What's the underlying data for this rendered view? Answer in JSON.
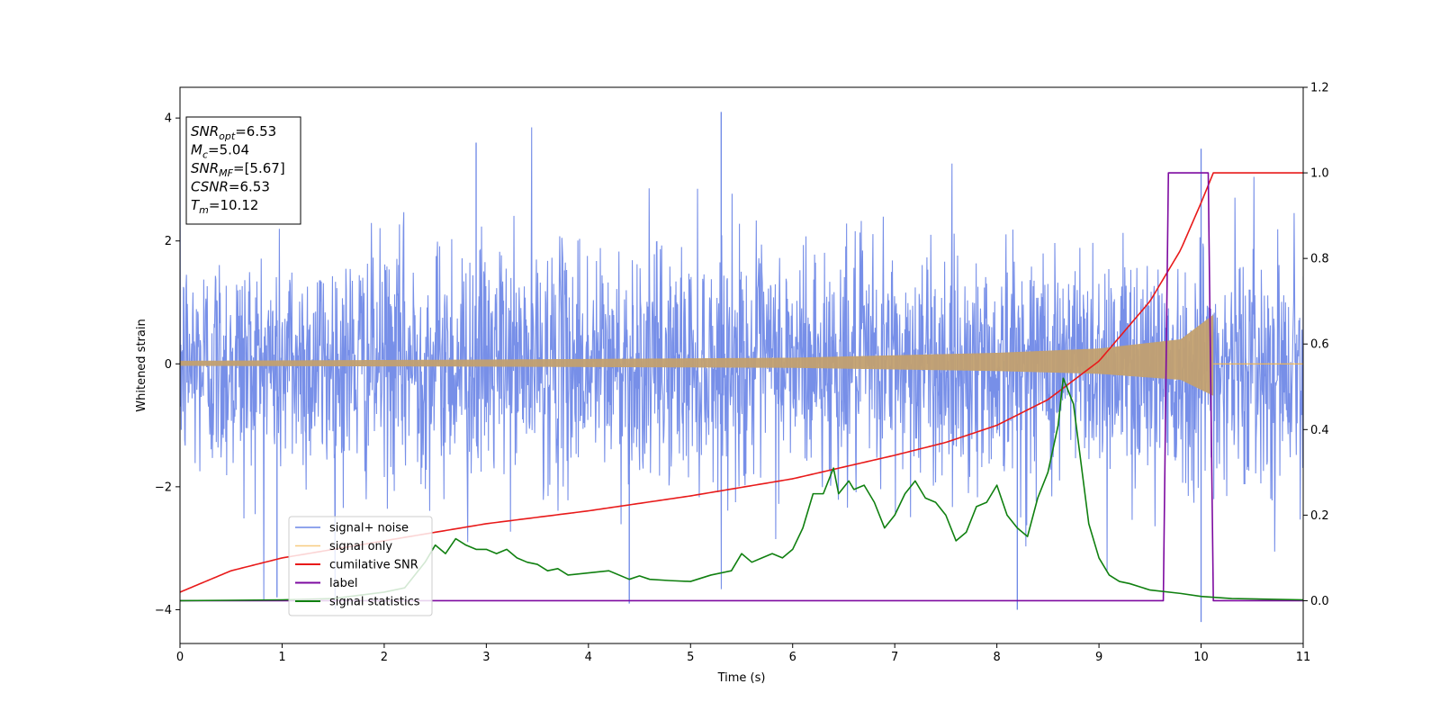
{
  "chart_data": {
    "type": "line",
    "xlabel": "Time (s)",
    "ylabel_left": "Whitened strain",
    "xlim": [
      0,
      11
    ],
    "ylim_left": [
      -4.55,
      4.5
    ],
    "ylim_right": [
      -0.1,
      1.2
    ],
    "xticks": [
      "0",
      "1",
      "2",
      "3",
      "4",
      "5",
      "6",
      "7",
      "8",
      "9",
      "10",
      "11"
    ],
    "yticks_left": [
      "4",
      "2",
      "0",
      "−2",
      "−4"
    ],
    "yticks_right": [
      "1.2",
      "1.0",
      "0.8",
      "0.6",
      "0.4",
      "0.2",
      "0.0"
    ],
    "grid": false,
    "legend_position": "lower-left",
    "annotation": [
      {
        "var": "SNR",
        "sub": "opt",
        "value": "=6.53"
      },
      {
        "var": "M",
        "sub": "c",
        "value": "=5.04"
      },
      {
        "var": "SNR",
        "sub": "MF",
        "value": "=[5.67]"
      },
      {
        "var": "CSNR",
        "sub": "",
        "value": "=6.53"
      },
      {
        "var": "T",
        "sub": "m",
        "value": "=10.12"
      }
    ],
    "series": [
      {
        "name": "signal+ noise",
        "color": "#6b86e6",
        "axis": "left",
        "kind": "noise",
        "std": 0.95,
        "x_range": [
          0,
          11
        ],
        "notable_peaks": [
          [
            5.3,
            4.1
          ],
          [
            10.0,
            3.5
          ],
          [
            2.9,
            3.6
          ],
          [
            0.95,
            -3.8
          ],
          [
            10.0,
            -4.2
          ],
          [
            8.2,
            -4.0
          ],
          [
            4.4,
            -3.9
          ]
        ]
      },
      {
        "name": "signal only",
        "color": "#f5b64b",
        "axis": "left",
        "kind": "chirp",
        "merger_time": 10.12,
        "amplitude_points": [
          [
            0,
            0.05
          ],
          [
            3,
            0.07
          ],
          [
            6,
            0.1
          ],
          [
            8,
            0.18
          ],
          [
            9,
            0.25
          ],
          [
            9.8,
            0.4
          ],
          [
            10.12,
            0.8
          ]
        ]
      },
      {
        "name": "cumilative SNR",
        "color": "#e81a1a",
        "axis": "right",
        "points": [
          [
            0,
            0.02
          ],
          [
            0.5,
            0.07
          ],
          [
            1,
            0.1
          ],
          [
            2,
            0.14
          ],
          [
            3,
            0.18
          ],
          [
            4,
            0.21
          ],
          [
            5,
            0.245
          ],
          [
            6,
            0.285
          ],
          [
            7,
            0.34
          ],
          [
            7.5,
            0.37
          ],
          [
            8,
            0.41
          ],
          [
            8.5,
            0.47
          ],
          [
            9,
            0.56
          ],
          [
            9.5,
            0.7
          ],
          [
            9.8,
            0.82
          ],
          [
            10.0,
            0.93
          ],
          [
            10.12,
            1.0
          ],
          [
            11,
            1.0
          ]
        ]
      },
      {
        "name": "label",
        "color": "#7d0aa0",
        "axis": "right",
        "points": [
          [
            0,
            0
          ],
          [
            9.63,
            0
          ],
          [
            9.68,
            1
          ],
          [
            10.07,
            1
          ],
          [
            10.12,
            0
          ],
          [
            11,
            0
          ]
        ]
      },
      {
        "name": "signal statistics",
        "color": "#108010",
        "axis": "right",
        "points": [
          [
            0,
            0
          ],
          [
            1,
            0.002
          ],
          [
            1.5,
            0.005
          ],
          [
            2,
            0.02
          ],
          [
            2.2,
            0.03
          ],
          [
            2.4,
            0.09
          ],
          [
            2.5,
            0.13
          ],
          [
            2.6,
            0.11
          ],
          [
            2.7,
            0.145
          ],
          [
            2.8,
            0.13
          ],
          [
            2.9,
            0.12
          ],
          [
            3.0,
            0.12
          ],
          [
            3.1,
            0.11
          ],
          [
            3.2,
            0.12
          ],
          [
            3.3,
            0.1
          ],
          [
            3.4,
            0.09
          ],
          [
            3.5,
            0.085
          ],
          [
            3.6,
            0.07
          ],
          [
            3.7,
            0.075
          ],
          [
            3.8,
            0.06
          ],
          [
            4.0,
            0.065
          ],
          [
            4.2,
            0.07
          ],
          [
            4.4,
            0.05
          ],
          [
            4.5,
            0.058
          ],
          [
            4.6,
            0.05
          ],
          [
            4.8,
            0.047
          ],
          [
            5.0,
            0.045
          ],
          [
            5.2,
            0.06
          ],
          [
            5.4,
            0.07
          ],
          [
            5.5,
            0.11
          ],
          [
            5.6,
            0.09
          ],
          [
            5.7,
            0.1
          ],
          [
            5.8,
            0.11
          ],
          [
            5.9,
            0.1
          ],
          [
            6.0,
            0.12
          ],
          [
            6.1,
            0.17
          ],
          [
            6.2,
            0.25
          ],
          [
            6.3,
            0.25
          ],
          [
            6.4,
            0.31
          ],
          [
            6.45,
            0.25
          ],
          [
            6.55,
            0.28
          ],
          [
            6.6,
            0.26
          ],
          [
            6.7,
            0.27
          ],
          [
            6.8,
            0.23
          ],
          [
            6.9,
            0.17
          ],
          [
            7.0,
            0.2
          ],
          [
            7.1,
            0.25
          ],
          [
            7.2,
            0.28
          ],
          [
            7.3,
            0.24
          ],
          [
            7.4,
            0.23
          ],
          [
            7.5,
            0.2
          ],
          [
            7.6,
            0.14
          ],
          [
            7.7,
            0.16
          ],
          [
            7.8,
            0.22
          ],
          [
            7.9,
            0.23
          ],
          [
            8.0,
            0.27
          ],
          [
            8.1,
            0.2
          ],
          [
            8.2,
            0.17
          ],
          [
            8.3,
            0.15
          ],
          [
            8.4,
            0.24
          ],
          [
            8.5,
            0.3
          ],
          [
            8.6,
            0.41
          ],
          [
            8.65,
            0.52
          ],
          [
            8.75,
            0.46
          ],
          [
            8.9,
            0.18
          ],
          [
            9.0,
            0.1
          ],
          [
            9.1,
            0.06
          ],
          [
            9.2,
            0.045
          ],
          [
            9.3,
            0.04
          ],
          [
            9.5,
            0.025
          ],
          [
            9.8,
            0.017
          ],
          [
            10.0,
            0.01
          ],
          [
            10.3,
            0.005
          ],
          [
            11,
            0.002
          ]
        ]
      }
    ]
  }
}
